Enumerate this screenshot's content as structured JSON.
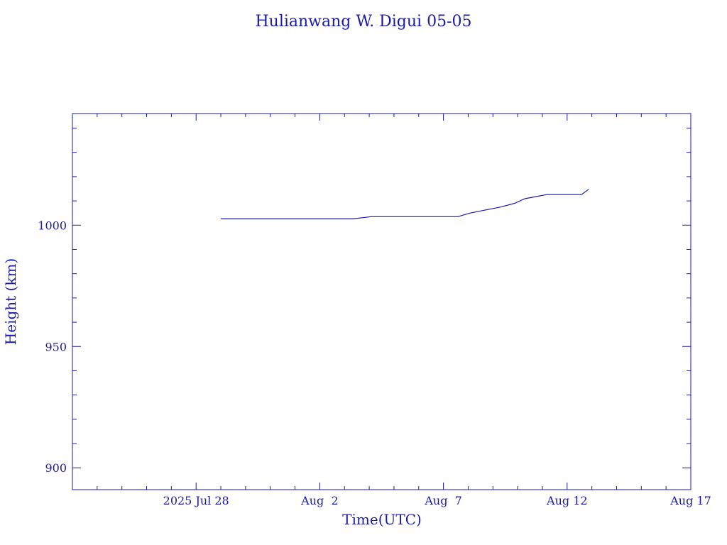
{
  "colors": {
    "ink": "#1a1aa8",
    "background": "#ffffff"
  },
  "chart_data": {
    "type": "line",
    "title": "Hulianwang W. Digui 05-05",
    "xlabel": "Time(UTC)",
    "ylabel": "Height (km)",
    "xlim": [
      "2025-07-23",
      "2025-08-17"
    ],
    "ylim": [
      891,
      1046
    ],
    "x_ticks": [
      {
        "date": "2025-07-28",
        "label": "2025 Jul 28"
      },
      {
        "date": "2025-08-02",
        "label": "Aug  2"
      },
      {
        "date": "2025-08-07",
        "label": "Aug  7"
      },
      {
        "date": "2025-08-12",
        "label": "Aug 12"
      },
      {
        "date": "2025-08-17",
        "label": "Aug 17"
      }
    ],
    "y_ticks": [
      {
        "value": 900,
        "label": "900"
      },
      {
        "value": 950,
        "label": "950"
      },
      {
        "value": 1000,
        "label": "1000"
      }
    ],
    "grid": false,
    "series": [
      {
        "x": [
          "2025-07-29T00:00",
          "2025-08-03T08:00",
          "2025-08-04T02:00",
          "2025-08-07T14:00",
          "2025-08-08T02:00",
          "2025-08-09T08:00",
          "2025-08-09T21:00",
          "2025-08-10T07:00",
          "2025-08-11T04:00",
          "2025-08-12T14:00",
          "2025-08-12T21:00"
        ],
        "y": [
          1002.6,
          1002.6,
          1003.5,
          1003.5,
          1005.0,
          1007.5,
          1009.0,
          1010.9,
          1012.6,
          1012.6,
          1014.8
        ]
      }
    ]
  }
}
